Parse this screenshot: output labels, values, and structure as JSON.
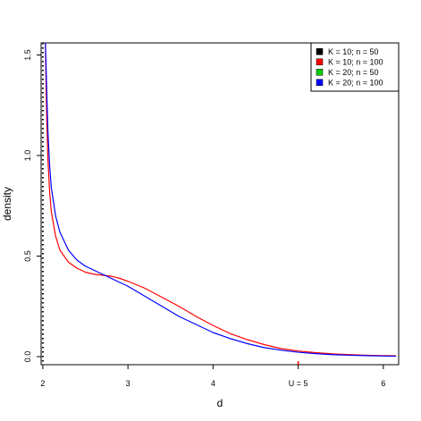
{
  "chart_data": {
    "type": "line",
    "xlabel": "d",
    "ylabel": "density",
    "xlim": [
      1.98,
      6.18
    ],
    "ylim": [
      -0.04,
      1.56
    ],
    "x_ticks": [
      {
        "value": 2,
        "label": "2"
      },
      {
        "value": 3,
        "label": "3"
      },
      {
        "value": 4,
        "label": "4"
      },
      {
        "value": 5,
        "label": "U = 5"
      },
      {
        "value": 6,
        "label": "6"
      }
    ],
    "y_ticks": [
      {
        "value": 0.0,
        "label": "0.0"
      },
      {
        "value": 0.5,
        "label": "0.5"
      },
      {
        "value": 1.0,
        "label": "1.0"
      },
      {
        "value": 1.5,
        "label": "1.5"
      }
    ],
    "vertical_line": {
      "x": 2,
      "style": "dotted",
      "color": "#000000"
    },
    "u_marker": {
      "x": 5,
      "color": "#FF0000"
    },
    "legend": {
      "position": "top-right",
      "entries": [
        {
          "label": "K = 10; n = 50",
          "color": "#000000"
        },
        {
          "label": "K = 10; n = 100",
          "color": "#FF0000"
        },
        {
          "label": "K = 20; n = 50",
          "color": "#00CD00"
        },
        {
          "label": "K = 20; n = 100",
          "color": "#0000FF"
        }
      ]
    },
    "series": [
      {
        "color": "#FF0000",
        "x": [
          2.03,
          2.04,
          2.05,
          2.06,
          2.08,
          2.1,
          2.15,
          2.2,
          2.3,
          2.4,
          2.5,
          2.6,
          2.7,
          2.8,
          2.9,
          3.0,
          3.2,
          3.4,
          3.6,
          3.8,
          4.0,
          4.2,
          4.4,
          4.6,
          4.8,
          5.0,
          5.2,
          5.4,
          5.6,
          5.8,
          6.0,
          6.15
        ],
        "y": [
          1.56,
          1.3,
          1.12,
          0.98,
          0.82,
          0.72,
          0.6,
          0.53,
          0.47,
          0.44,
          0.42,
          0.41,
          0.405,
          0.4,
          0.39,
          0.375,
          0.34,
          0.295,
          0.25,
          0.2,
          0.155,
          0.115,
          0.085,
          0.06,
          0.04,
          0.028,
          0.02,
          0.014,
          0.01,
          0.007,
          0.005,
          0.004
        ]
      },
      {
        "color": "#0000FF",
        "x": [
          2.03,
          2.04,
          2.05,
          2.06,
          2.08,
          2.1,
          2.15,
          2.2,
          2.3,
          2.4,
          2.5,
          2.6,
          2.7,
          2.8,
          2.9,
          3.0,
          3.2,
          3.4,
          3.6,
          3.8,
          4.0,
          4.2,
          4.4,
          4.6,
          4.8,
          5.0,
          5.2,
          5.4,
          5.6,
          5.8,
          6.0,
          6.15
        ],
        "y": [
          1.56,
          1.42,
          1.26,
          1.12,
          0.95,
          0.84,
          0.7,
          0.62,
          0.53,
          0.48,
          0.45,
          0.43,
          0.41,
          0.39,
          0.37,
          0.35,
          0.3,
          0.25,
          0.2,
          0.16,
          0.12,
          0.09,
          0.065,
          0.045,
          0.032,
          0.022,
          0.015,
          0.01,
          0.007,
          0.005,
          0.003,
          0.002
        ]
      }
    ]
  }
}
